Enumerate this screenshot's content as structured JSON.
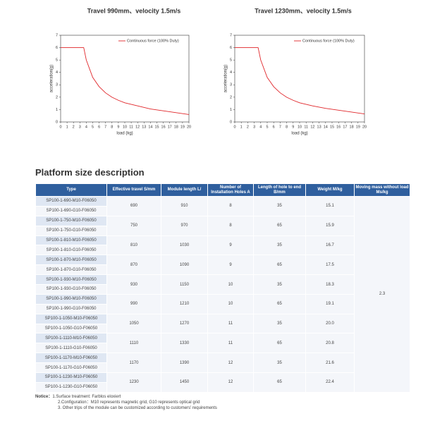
{
  "chart_data": [
    {
      "type": "line",
      "title": "Travel 990mm、velocity 1.5m/s",
      "x_label": "load (kg)",
      "y_label": "acceleration(g)",
      "x": [
        0,
        1,
        2,
        3,
        3.6,
        4,
        5,
        6,
        7,
        8,
        9,
        10,
        12,
        14,
        16,
        18,
        20
      ],
      "series": [
        {
          "name": "Continuous force (100% Duty)",
          "color": "#e0262a",
          "values": [
            6,
            6,
            6,
            6,
            6,
            5.0,
            3.6,
            2.85,
            2.35,
            2.0,
            1.75,
            1.55,
            1.3,
            1.05,
            0.9,
            0.75,
            0.6
          ]
        }
      ],
      "xlim": [
        0,
        20
      ],
      "xticks": [
        0,
        1,
        2,
        3,
        4,
        5,
        6,
        7,
        8,
        9,
        10,
        11,
        12,
        13,
        14,
        15,
        16,
        17,
        18,
        19,
        20
      ],
      "ylim": [
        0,
        7
      ],
      "yticks": [
        0,
        1,
        2,
        3,
        4,
        5,
        6,
        7
      ],
      "legend": "upper right",
      "grid": false
    },
    {
      "type": "line",
      "title": "Travel 1230mm、velocity 1.5m/s",
      "x_label": "load (kg)",
      "y_label": "acceleration(g)",
      "x": [
        0,
        1,
        2,
        3,
        3.6,
        4,
        5,
        6,
        7,
        8,
        9,
        10,
        12,
        14,
        16,
        18,
        20
      ],
      "series": [
        {
          "name": "Continuous force (100% Duty)",
          "color": "#e0262a",
          "values": [
            6,
            6,
            6,
            6,
            6,
            5.0,
            3.6,
            2.85,
            2.35,
            2.0,
            1.75,
            1.55,
            1.3,
            1.1,
            0.95,
            0.8,
            0.65
          ]
        }
      ],
      "xlim": [
        0,
        20
      ],
      "xticks": [
        0,
        1,
        2,
        3,
        4,
        5,
        6,
        7,
        8,
        9,
        10,
        11,
        12,
        13,
        14,
        15,
        16,
        17,
        18,
        19,
        20
      ],
      "ylim": [
        0,
        7
      ],
      "yticks": [
        0,
        1,
        2,
        3,
        4,
        5,
        6,
        7
      ],
      "legend": "upper right",
      "grid": false
    }
  ],
  "section_title": "Platform size description",
  "table": {
    "header": [
      "Type",
      "Effective travel S/mm",
      "Module length L/",
      "Number of Installation Holes A",
      "Length of hole to end B/mm",
      "Weight M/kg",
      "Moving mass without load Ms/kg"
    ],
    "groups": [
      {
        "types": [
          "SP100-1-690-M10-F06050",
          "SP100-1-690-G10-F06050"
        ],
        "cells": [
          "690",
          "910",
          "8",
          "35",
          "15.1"
        ]
      },
      {
        "types": [
          "SP100-1-750-M10-F06050",
          "SP100-1-750-G10-F06050"
        ],
        "cells": [
          "750",
          "970",
          "8",
          "65",
          "15.9"
        ]
      },
      {
        "types": [
          "SP100-1-810-M10-F06050",
          "SP100-1-810-G10-F06050"
        ],
        "cells": [
          "810",
          "1030",
          "9",
          "35",
          "16.7"
        ]
      },
      {
        "types": [
          "SP100-1-870-M10-F06050",
          "SP100-1-870-G10-F06050"
        ],
        "cells": [
          "870",
          "1090",
          "9",
          "65",
          "17.5"
        ]
      },
      {
        "types": [
          "SP100-1-930-M10-F06050",
          "SP100-1-930-G10-F06050"
        ],
        "cells": [
          "930",
          "1150",
          "10",
          "35",
          "18.3"
        ]
      },
      {
        "types": [
          "SP100-1-990-M10-F06050",
          "SP100-1-990-G10-F06050"
        ],
        "cells": [
          "990",
          "1210",
          "10",
          "65",
          "19.1"
        ]
      },
      {
        "types": [
          "SP100-1-1050-M10-F06050",
          "SP100-1-1050-G10-F06050"
        ],
        "cells": [
          "1050",
          "1270",
          "11",
          "35",
          "20.0"
        ]
      },
      {
        "types": [
          "SP100-1-1110-M10-F06050",
          "SP100-1-1110-G10-F06050"
        ],
        "cells": [
          "1110",
          "1330",
          "11",
          "65",
          "20.8"
        ]
      },
      {
        "types": [
          "SP100-1-1170-M10-F06050",
          "SP100-1-1170-G10-F06050"
        ],
        "cells": [
          "1170",
          "1390",
          "12",
          "35",
          "21.6"
        ]
      },
      {
        "types": [
          "SP100-1-1230-M10-F06050",
          "SP100-1-1230-G10-F06050"
        ],
        "cells": [
          "1230",
          "1450",
          "12",
          "65",
          "22.4"
        ]
      }
    ],
    "moving_mass": "2.3"
  },
  "notice": {
    "label": "Notice：",
    "items": [
      "1.Surface treatment: Farblos eloxiert",
      "2.Configuration：M10 represents magnetic grid, G10 represents optical grid",
      "3. Other trips of the module can be customized according to customers' requirements"
    ]
  }
}
